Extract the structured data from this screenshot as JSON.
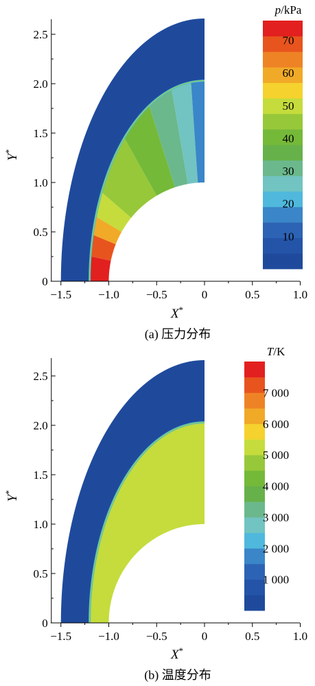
{
  "chart_data": [
    {
      "type": "heatmap",
      "panel": "a",
      "caption": "(a)  压力分布",
      "xlabel": "X",
      "ylabel": "Y",
      "label_superscript": "*",
      "xlim": [
        -1.6,
        1.0
      ],
      "ylim": [
        0,
        2.7
      ],
      "xticks": [
        "−1.5",
        "−1.0",
        "−0.5",
        "0",
        "0.5",
        "1.0"
      ],
      "xtick_values": [
        -1.5,
        -1.0,
        -0.5,
        0,
        0.5,
        1.0
      ],
      "yticks": [
        "0",
        "0.5",
        "1.0",
        "1.5",
        "2.0",
        "2.5"
      ],
      "ytick_values": [
        0,
        0.5,
        1.0,
        1.5,
        2.0,
        2.5
      ],
      "colorbar": {
        "title_var": "p",
        "title_unit": "/kPa",
        "min": 0,
        "max": 76,
        "level_step": 5,
        "labels": [
          "10",
          "20",
          "30",
          "40",
          "50",
          "60",
          "70"
        ],
        "label_values": [
          10,
          20,
          30,
          40,
          50,
          60,
          70
        ]
      },
      "body_radius": 1.0,
      "shock_standoff_x": -1.2,
      "domain_outer_top_y": 2.66,
      "shock_top_y": 2.03,
      "bands": [
        {
          "value": 75,
          "angle_from": 0,
          "angle_to": 12
        },
        {
          "value": 68,
          "angle_from": 12,
          "angle_to": 22
        },
        {
          "value": 60,
          "angle_from": 22,
          "angle_to": 30
        },
        {
          "value": 52,
          "angle_from": 30,
          "angle_to": 40
        },
        {
          "value": 46,
          "angle_from": 40,
          "angle_to": 60
        },
        {
          "value": 40,
          "angle_from": 60,
          "angle_to": 72
        },
        {
          "value": 32,
          "angle_from": 72,
          "angle_to": 80
        },
        {
          "value": 24,
          "angle_from": 80,
          "angle_to": 86
        },
        {
          "value": 16,
          "angle_from": 86,
          "angle_to": 90
        }
      ]
    },
    {
      "type": "heatmap",
      "panel": "b",
      "caption": "(b)  温度分布",
      "xlabel": "X",
      "ylabel": "Y",
      "label_superscript": "*",
      "xlim": [
        -1.6,
        1.0
      ],
      "ylim": [
        0,
        2.7
      ],
      "xticks": [
        "−1.5",
        "−1.0",
        "−0.5",
        "0",
        "0.5",
        "1.0"
      ],
      "xtick_values": [
        -1.5,
        -1.0,
        -0.5,
        0,
        0.5,
        1.0
      ],
      "yticks": [
        "0",
        "0.5",
        "1.0",
        "1.5",
        "2.0",
        "2.5"
      ],
      "ytick_values": [
        0,
        0.5,
        1.0,
        1.5,
        2.0,
        2.5
      ],
      "colorbar": {
        "title_var": "T",
        "title_unit": "/K",
        "min": 0,
        "max": 8000,
        "level_step": 500,
        "labels": [
          "1 000",
          "2 000",
          "3 000",
          "4 000",
          "5 000",
          "6 000",
          "7 000"
        ],
        "label_values": [
          1000,
          2000,
          3000,
          4000,
          5000,
          6000,
          7000
        ]
      },
      "body_radius": 1.0,
      "shock_standoff_x": -1.2,
      "domain_outer_top_y": 2.66,
      "shock_top_y": 2.03,
      "bands": [
        {
          "value": 5400,
          "angle_from": 0,
          "angle_to": 90
        }
      ]
    }
  ]
}
